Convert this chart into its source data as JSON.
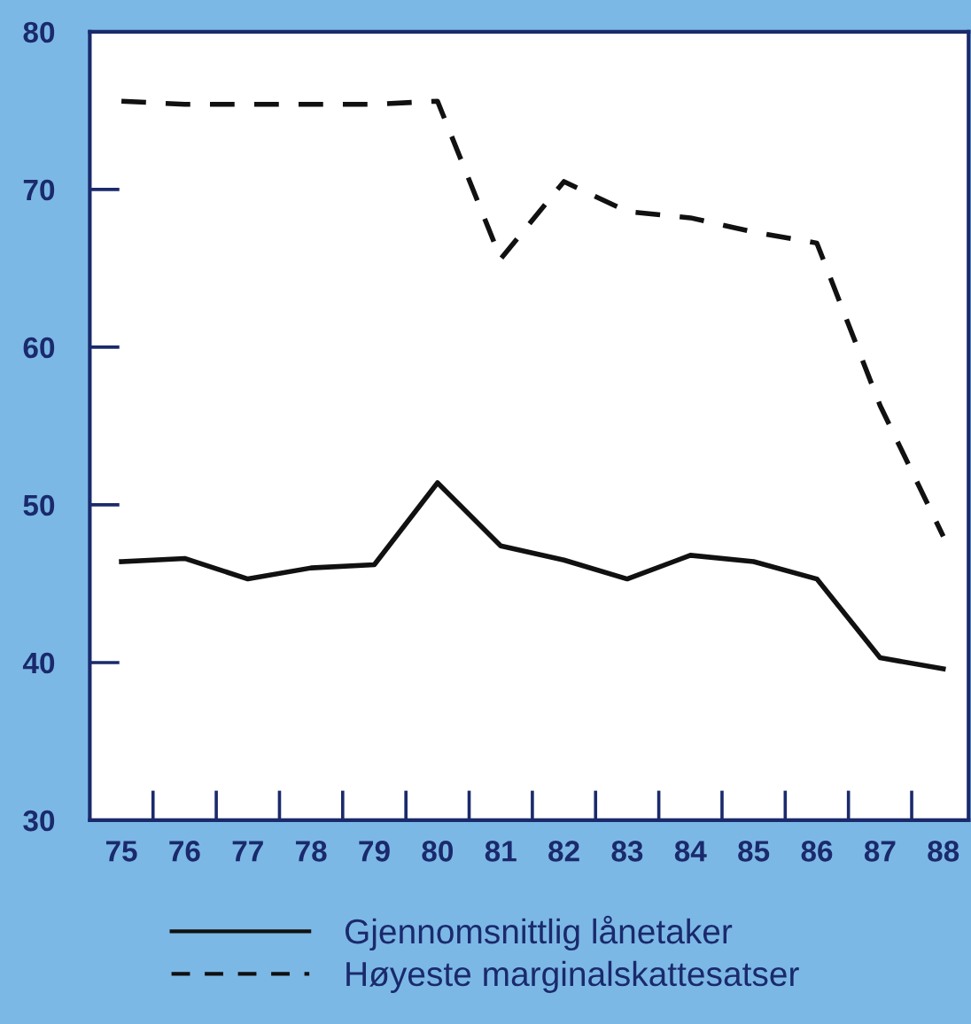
{
  "chart_data": {
    "type": "line",
    "categories": [
      "75",
      "76",
      "77",
      "78",
      "79",
      "80",
      "81",
      "82",
      "83",
      "84",
      "85",
      "86",
      "87",
      "88"
    ],
    "series": [
      {
        "name": "Gjennomsnittlig lånetaker",
        "color": "#111111",
        "line_style": "solid",
        "values": [
          46.4,
          46.6,
          45.3,
          46.0,
          46.2,
          51.4,
          47.4,
          46.5,
          45.3,
          46.8,
          46.4,
          45.3,
          40.3,
          39.6
        ]
      },
      {
        "name": "Høyeste marginalskattesatser",
        "color": "#111111",
        "line_style": "dashed",
        "values": [
          75.6,
          75.4,
          75.4,
          75.4,
          75.4,
          75.6,
          65.6,
          70.5,
          68.6,
          68.2,
          67.3,
          66.6,
          56.3,
          48.0
        ]
      }
    ],
    "ylim": [
      30,
      80
    ],
    "yticks": [
      30,
      40,
      50,
      60,
      70,
      80
    ],
    "grid": false,
    "legend": "bottom",
    "marker": "none"
  }
}
